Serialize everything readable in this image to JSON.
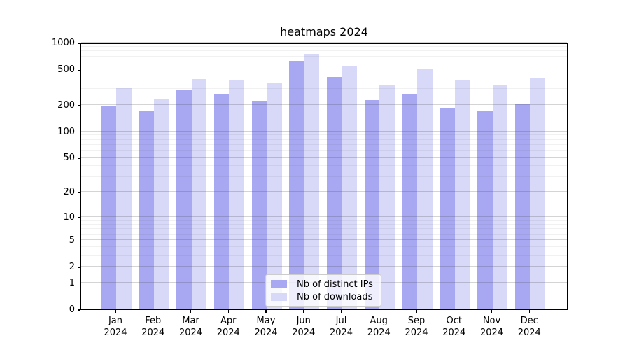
{
  "title": "heatmaps 2024",
  "colors": {
    "ips_bar": "#a8a8f2",
    "downloads_bar": "#d8d8f9",
    "grid_major": "rgba(60,60,60,0.22)",
    "grid_minor": "rgba(60,60,60,0.07)",
    "axis": "#000000",
    "legend_border": "#cccccc"
  },
  "legend": {
    "items": [
      {
        "label": "Nb of distinct IPs",
        "color_key": "ips_bar"
      },
      {
        "label": "Nb of downloads",
        "color_key": "downloads_bar"
      }
    ]
  },
  "axes": {
    "y_ticks": [
      1000,
      500,
      200,
      100,
      50,
      20,
      10,
      5,
      2,
      1,
      0
    ],
    "x_tick_labels": [
      "Jan\n2024",
      "Feb\n2024",
      "Mar\n2024",
      "Apr\n2024",
      "May\n2024",
      "Jun\n2024",
      "Jul\n2024",
      "Aug\n2024",
      "Sep\n2024",
      "Oct\n2024",
      "Nov\n2024",
      "Dec\n2024"
    ]
  },
  "chart_data": {
    "type": "bar",
    "title": "heatmaps 2024",
    "categories": [
      "Jan 2024",
      "Feb 2024",
      "Mar 2024",
      "Apr 2024",
      "May 2024",
      "Jun 2024",
      "Jul 2024",
      "Aug 2024",
      "Sep 2024",
      "Oct 2024",
      "Nov 2024",
      "Dec 2024"
    ],
    "series": [
      {
        "name": "Nb of distinct IPs",
        "values": [
          190,
          170,
          295,
          260,
          220,
          625,
          410,
          225,
          265,
          185,
          172,
          207
        ]
      },
      {
        "name": "Nb of downloads",
        "values": [
          310,
          230,
          390,
          385,
          350,
          750,
          540,
          330,
          510,
          380,
          332,
          400
        ]
      }
    ],
    "xlabel": "",
    "ylabel": "",
    "yscale": "log1p",
    "ylim": [
      0,
      1000
    ],
    "y_ticks": [
      0,
      1,
      2,
      5,
      10,
      20,
      50,
      100,
      200,
      500,
      1000
    ],
    "grid": true,
    "legend_position": "lower center"
  }
}
